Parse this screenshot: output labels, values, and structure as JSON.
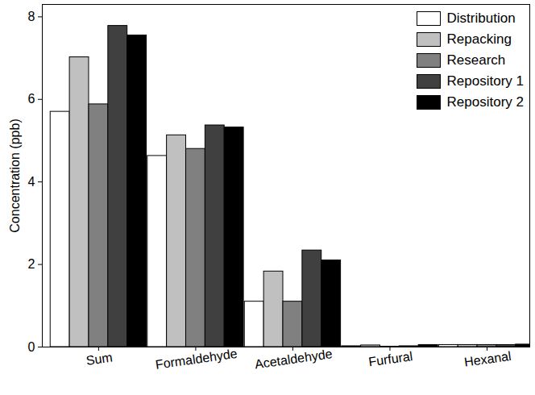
{
  "chart_data": {
    "type": "bar",
    "y_label": "Concentration (ppb)",
    "categories": [
      "Sum",
      "Formaldehyde",
      "Acetaldehyde",
      "Furfural",
      "Hexanal"
    ],
    "series": [
      {
        "name": "Distribution",
        "color": "#ffffff",
        "values": [
          5.7,
          4.63,
          1.1,
          0.02,
          0.05
        ]
      },
      {
        "name": "Repacking",
        "color": "#c0c0c0",
        "values": [
          7.02,
          5.13,
          1.83,
          0.04,
          0.05
        ]
      },
      {
        "name": "Research",
        "color": "#808080",
        "values": [
          5.88,
          4.8,
          1.1,
          0.01,
          0.05
        ]
      },
      {
        "name": "Repository 1",
        "color": "#404040",
        "values": [
          7.78,
          5.37,
          2.34,
          0.02,
          0.05
        ]
      },
      {
        "name": "Repository 2",
        "color": "#000000",
        "values": [
          7.55,
          5.32,
          2.1,
          0.05,
          0.06
        ]
      }
    ],
    "ylim": [
      0,
      8.3
    ],
    "yticks": [
      0,
      2,
      4,
      6,
      8
    ],
    "grid": false,
    "legend": "top-right"
  }
}
